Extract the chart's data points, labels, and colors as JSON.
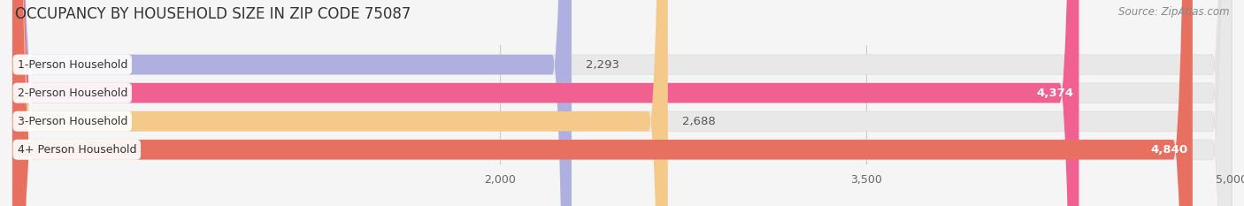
{
  "title": "OCCUPANCY BY HOUSEHOLD SIZE IN ZIP CODE 75087",
  "source": "Source: ZipAtlas.com",
  "categories": [
    "1-Person Household",
    "2-Person Household",
    "3-Person Household",
    "4+ Person Household"
  ],
  "values": [
    2293,
    4374,
    2688,
    4840
  ],
  "bar_colors": [
    "#b0b0e0",
    "#f06090",
    "#f5c98a",
    "#e87060"
  ],
  "bar_labels": [
    "2,293",
    "4,374",
    "2,688",
    "4,840"
  ],
  "label_inside": [
    false,
    true,
    false,
    true
  ],
  "data_min": 0,
  "data_max": 5000,
  "xlim": [
    0,
    5000
  ],
  "xticks": [
    2000,
    3500,
    5000
  ],
  "xtick_labels": [
    "2,000",
    "3,500",
    "5,000"
  ],
  "background_color": "#f5f5f5",
  "bar_background_color": "#e8e8e8",
  "title_fontsize": 12,
  "source_fontsize": 8.5,
  "label_fontsize": 9.5,
  "category_fontsize": 9,
  "tick_fontsize": 9
}
